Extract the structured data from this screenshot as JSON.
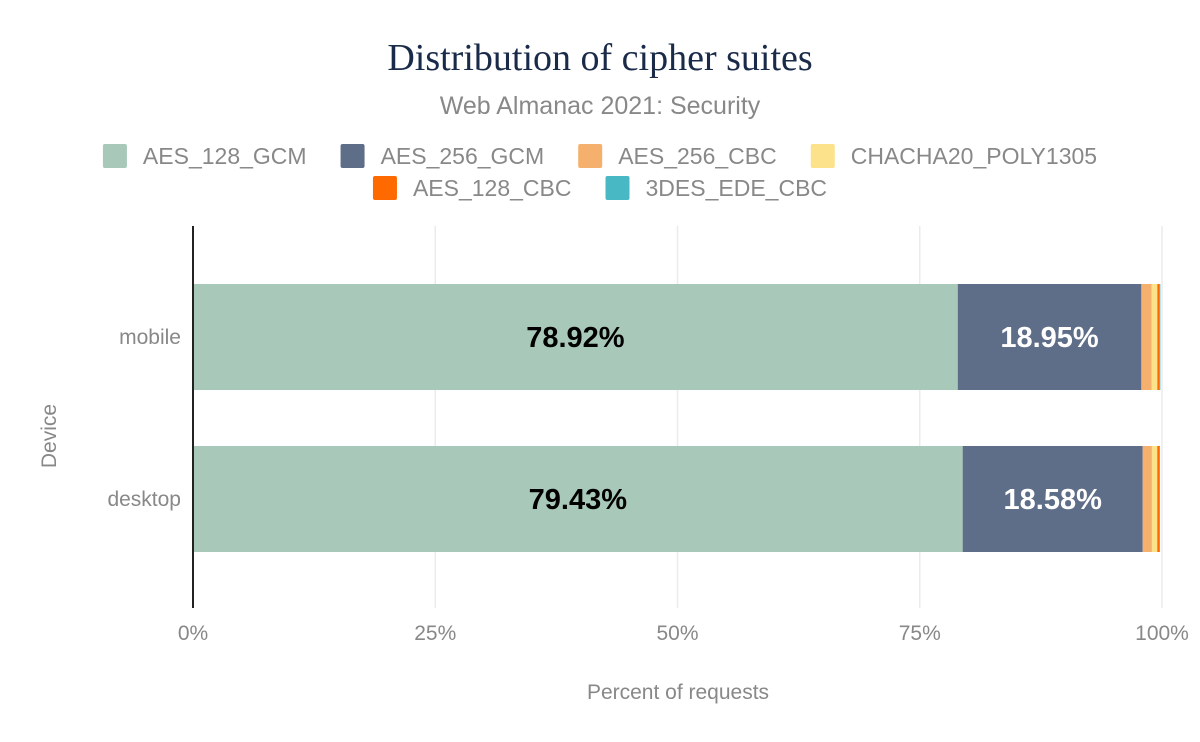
{
  "chart_data": {
    "type": "bar",
    "orientation": "horizontal",
    "stacked": true,
    "title": "Distribution of cipher suites",
    "subtitle": "Web Almanac 2021: Security",
    "xlabel": "Percent of requests",
    "ylabel": "Device",
    "xlim": [
      0,
      100
    ],
    "x_ticks": [
      "0%",
      "25%",
      "50%",
      "75%",
      "100%"
    ],
    "grid": "vertical",
    "legend_position": "top",
    "categories": [
      "mobile",
      "desktop"
    ],
    "series": [
      {
        "name": "AES_128_GCM",
        "color": "#a8c9ba",
        "label_color": "#000000",
        "values": [
          78.92,
          79.43
        ]
      },
      {
        "name": "AES_256_GCM",
        "color": "#5f6e88",
        "label_color": "#ffffff",
        "values": [
          18.95,
          18.58
        ]
      },
      {
        "name": "AES_256_CBC",
        "color": "#f4b06c",
        "label_color": "#000000",
        "values": [
          1.05,
          0.95
        ]
      },
      {
        "name": "CHACHA20_POLY1305",
        "color": "#fce28a",
        "label_color": "#000000",
        "values": [
          0.6,
          0.55
        ]
      },
      {
        "name": "AES_128_CBC",
        "color": "#ff6a00",
        "label_color": "#000000",
        "values": [
          0.25,
          0.22
        ]
      },
      {
        "name": "3DES_EDE_CBC",
        "color": "#48b8c4",
        "label_color": "#000000",
        "values": [
          0.03,
          0.03
        ]
      }
    ],
    "data_labels": [
      {
        "series": 0,
        "category": 0,
        "text": "78.92%"
      },
      {
        "series": 1,
        "category": 0,
        "text": "18.95%"
      },
      {
        "series": 0,
        "category": 1,
        "text": "79.43%"
      },
      {
        "series": 1,
        "category": 1,
        "text": "18.58%"
      }
    ]
  }
}
